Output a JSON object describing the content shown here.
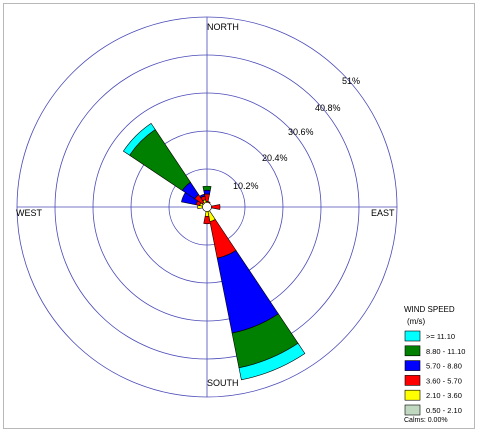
{
  "chart_data": {
    "type": "windrose",
    "title": "",
    "directions": [
      "N",
      "NNE",
      "NE",
      "ENE",
      "E",
      "ESE",
      "SE",
      "SSE",
      "S",
      "SSW",
      "SW",
      "WSW",
      "W",
      "WNW",
      "NW",
      "NNW"
    ],
    "compass_labels": {
      "north": "NORTH",
      "south": "SOUTH",
      "east": "EAST",
      "west": "WEST"
    },
    "ring_values": [
      10.2,
      20.4,
      30.6,
      40.8,
      51
    ],
    "ring_labels": [
      "10.2%",
      "20.4%",
      "30.6%",
      "40.8%",
      "51%"
    ],
    "rmax": 51,
    "legend_title": "WIND SPEED",
    "legend_unit": "(m/s)",
    "calms_text": "Calms: 0.00%",
    "bins": [
      {
        "name": ">= 11.10",
        "color": "#00ffff"
      },
      {
        "name": "8.80 - 11.10",
        "color": "#008000"
      },
      {
        "name": "5.70 - 8.80",
        "color": "#0000ff"
      },
      {
        "name": "3.60 - 5.70",
        "color": "#ff0000"
      },
      {
        "name": "2.10 - 3.60",
        "color": "#ffff00"
      },
      {
        "name": "0.50 - 2.10",
        "color": "#c0d8c0"
      }
    ],
    "cumulative_percent": {
      "N": [
        0.5,
        1.5,
        3.5,
        4.5,
        5.6,
        5.6
      ],
      "NNE": [
        0.5,
        1.0,
        1.5,
        1.5,
        1.5,
        1.5
      ],
      "NE": [
        0.5,
        0.8,
        0.8,
        0.8,
        0.8,
        0.8
      ],
      "ENE": [
        0.5,
        0.8,
        0.8,
        0.8,
        0.8,
        0.8
      ],
      "E": [
        0.5,
        1.0,
        3.5,
        3.5,
        3.5,
        3.5
      ],
      "ESE": [
        0.5,
        0.8,
        0.8,
        0.8,
        0.8,
        0.8
      ],
      "SE": [
        0.5,
        0.8,
        0.8,
        0.8,
        0.8,
        0.8
      ],
      "SSE": [
        0.5,
        4.0,
        14.0,
        34.5,
        44.0,
        47.3
      ],
      "S": [
        0.5,
        2.5,
        4.5,
        4.5,
        4.5,
        4.5
      ],
      "SSW": [
        0.5,
        1.0,
        1.0,
        1.0,
        1.0,
        1.0
      ],
      "SW": [
        0.5,
        0.8,
        0.8,
        0.8,
        0.8,
        0.8
      ],
      "WSW": [
        0.5,
        0.8,
        0.8,
        0.8,
        0.8,
        0.8
      ],
      "W": [
        0.5,
        2.5,
        2.5,
        2.5,
        2.5,
        2.5
      ],
      "WNW": [
        0.5,
        2.0,
        3.0,
        7.0,
        7.0,
        7.0
      ],
      "NW": [
        0.5,
        1.5,
        4.0,
        8.0,
        25.0,
        27.0
      ],
      "NNW": [
        0.5,
        2.0,
        3.0,
        3.5,
        3.5,
        3.5
      ]
    }
  }
}
